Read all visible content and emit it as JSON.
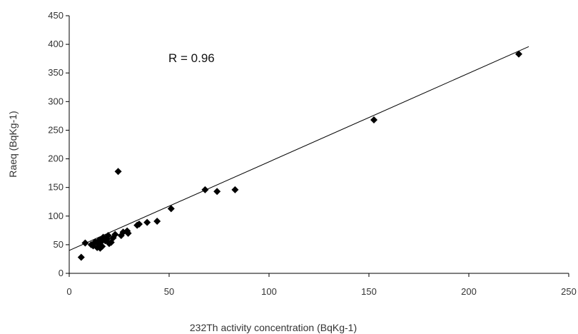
{
  "chart_data": {
    "type": "scatter",
    "title": "",
    "xlabel": "232Th activity concentration  (BqKg-1)",
    "ylabel": "Raeq (BqKg-1)",
    "xlim": [
      0,
      250
    ],
    "ylim": [
      0,
      450
    ],
    "x_ticks": [
      "0",
      "50",
      "100",
      "150",
      "200",
      "250"
    ],
    "y_ticks": [
      "0",
      "50",
      "100",
      "150",
      "200",
      "250",
      "300",
      "350",
      "400",
      "450"
    ],
    "grid": false,
    "legend": "none",
    "annotation": "R = 0.96",
    "series": [
      {
        "marker": "diamond",
        "color": "#000000",
        "points": [
          {
            "x": 6,
            "y": 28
          },
          {
            "x": 8,
            "y": 53
          },
          {
            "x": 11,
            "y": 50
          },
          {
            "x": 12,
            "y": 48
          },
          {
            "x": 13,
            "y": 55
          },
          {
            "x": 14,
            "y": 45
          },
          {
            "x": 14.5,
            "y": 52
          },
          {
            "x": 15,
            "y": 58
          },
          {
            "x": 15.5,
            "y": 44
          },
          {
            "x": 16,
            "y": 55
          },
          {
            "x": 16.5,
            "y": 47
          },
          {
            "x": 17,
            "y": 63
          },
          {
            "x": 18,
            "y": 57
          },
          {
            "x": 19,
            "y": 60
          },
          {
            "x": 19.5,
            "y": 66
          },
          {
            "x": 20,
            "y": 52
          },
          {
            "x": 21,
            "y": 54
          },
          {
            "x": 22,
            "y": 62
          },
          {
            "x": 23,
            "y": 68
          },
          {
            "x": 24.5,
            "y": 178
          },
          {
            "x": 26,
            "y": 66
          },
          {
            "x": 27,
            "y": 72
          },
          {
            "x": 29,
            "y": 74
          },
          {
            "x": 29.5,
            "y": 70
          },
          {
            "x": 34,
            "y": 84
          },
          {
            "x": 35,
            "y": 86
          },
          {
            "x": 39,
            "y": 89
          },
          {
            "x": 44,
            "y": 91
          },
          {
            "x": 51,
            "y": 113
          },
          {
            "x": 68,
            "y": 146
          },
          {
            "x": 74,
            "y": 143
          },
          {
            "x": 83,
            "y": 146
          },
          {
            "x": 152.5,
            "y": 268
          },
          {
            "x": 225,
            "y": 383
          }
        ]
      }
    ],
    "trendline": {
      "x0": 0,
      "y0": 40,
      "x1": 230,
      "y1": 396
    }
  }
}
